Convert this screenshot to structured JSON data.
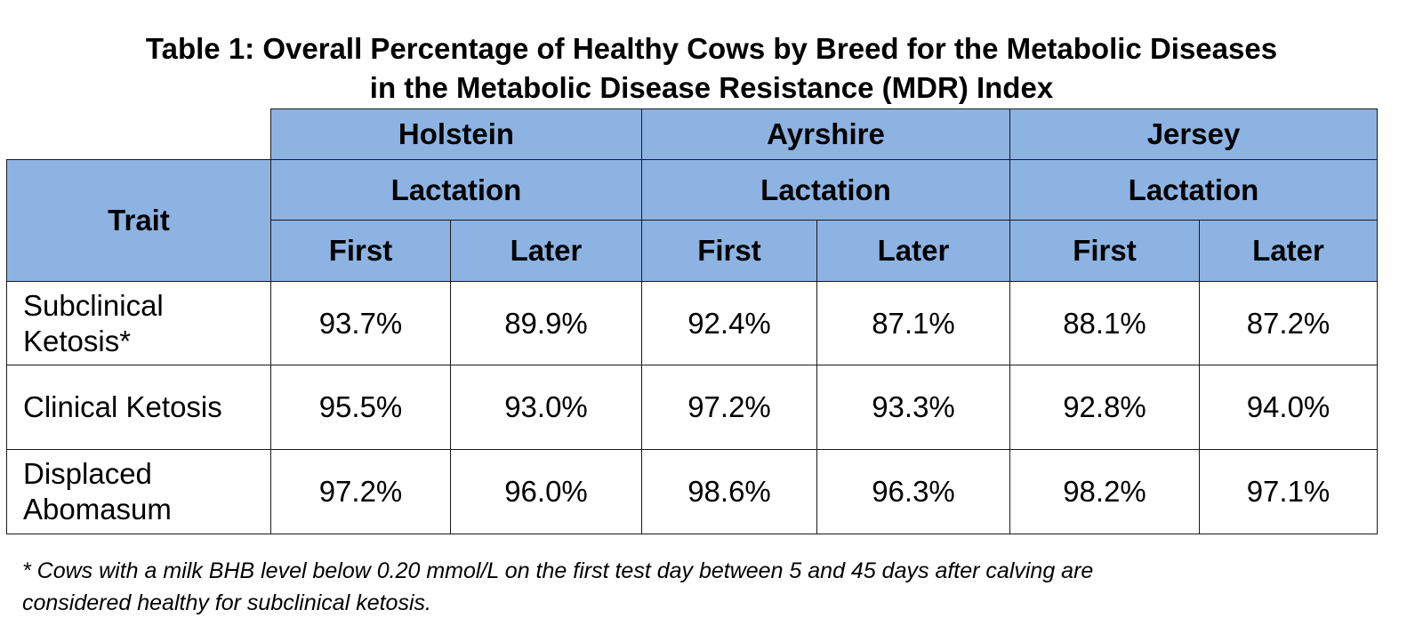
{
  "title": {
    "line1": "Table 1: Overall Percentage of Healthy Cows by Breed for the Metabolic Diseases",
    "line2": "in the Metabolic Disease Resistance (MDR) Index"
  },
  "table": {
    "trait_header": "Trait",
    "breeds": [
      {
        "name": "Holstein",
        "group_label": "Lactation",
        "first_label": "First",
        "later_label": "Later"
      },
      {
        "name": "Ayrshire",
        "group_label": "Lactation",
        "first_label": "First",
        "later_label": "Later"
      },
      {
        "name": "Jersey",
        "group_label": "Lactation",
        "first_label": "First",
        "later_label": "Later"
      }
    ],
    "rows": [
      {
        "trait_line1": "Subclinical",
        "trait_line2": "Ketosis*",
        "values": [
          "93.7%",
          "89.9%",
          "92.4%",
          "87.1%",
          "88.1%",
          "87.2%"
        ]
      },
      {
        "trait_line1": "Clinical Ketosis",
        "trait_line2": "",
        "values": [
          "95.5%",
          "93.0%",
          "97.2%",
          "93.3%",
          "92.8%",
          "94.0%"
        ]
      },
      {
        "trait_line1": "Displaced",
        "trait_line2": "Abomasum",
        "values": [
          "97.2%",
          "96.0%",
          "98.6%",
          "96.3%",
          "98.2%",
          "97.1%"
        ]
      }
    ]
  },
  "footnote": {
    "line1": "* Cows with a milk BHB level below 0.20 mmol/L on the first test day between 5 and 45 days after calving are",
    "line2": "considered healthy for subclinical ketosis."
  },
  "colors": {
    "header_fill": "#8db3e2",
    "border": "#1a1a1a",
    "background": "#ffffff"
  }
}
